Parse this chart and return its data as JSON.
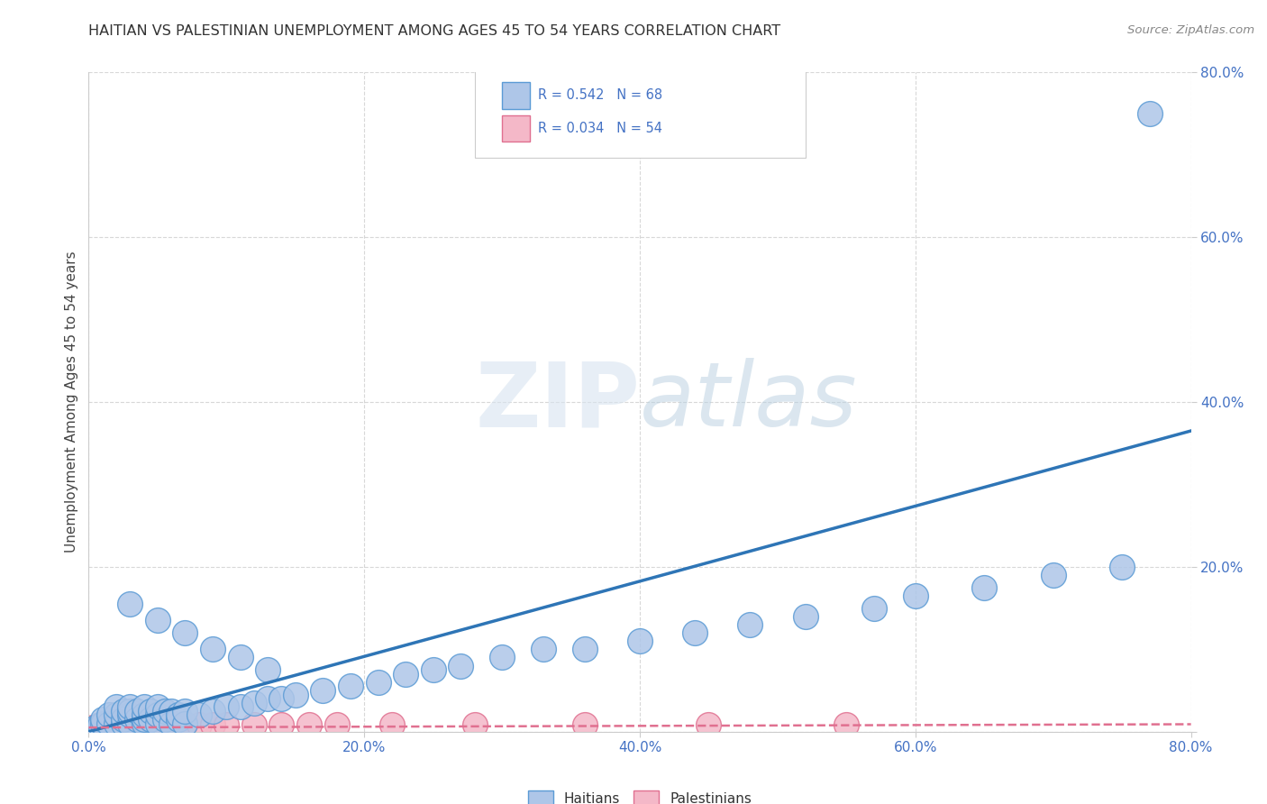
{
  "title": "HAITIAN VS PALESTINIAN UNEMPLOYMENT AMONG AGES 45 TO 54 YEARS CORRELATION CHART",
  "source": "Source: ZipAtlas.com",
  "ylabel": "Unemployment Among Ages 45 to 54 years",
  "xlim": [
    0.0,
    0.8
  ],
  "ylim": [
    0.0,
    0.8
  ],
  "xticks": [
    0.0,
    0.2,
    0.4,
    0.6,
    0.8
  ],
  "yticks": [
    0.0,
    0.2,
    0.4,
    0.6,
    0.8
  ],
  "xticklabels": [
    "0.0%",
    "20.0%",
    "40.0%",
    "60.0%",
    "80.0%"
  ],
  "yticklabels": [
    "",
    "20.0%",
    "40.0%",
    "60.0%",
    "80.0%"
  ],
  "haitian_color": "#aec6e8",
  "haitian_edge_color": "#5b9bd5",
  "palestinian_color": "#f4b8c8",
  "palestinian_edge_color": "#e07090",
  "trend_haitian_color": "#2e75b6",
  "trend_palestinian_color": "#e07090",
  "R_haitian": 0.542,
  "N_haitian": 68,
  "R_palestinian": 0.034,
  "N_palestinian": 54,
  "background_color": "#ffffff",
  "grid_color": "#c8c8c8",
  "haitian_x": [
    0.005,
    0.008,
    0.01,
    0.01,
    0.015,
    0.015,
    0.02,
    0.02,
    0.02,
    0.025,
    0.025,
    0.025,
    0.03,
    0.03,
    0.03,
    0.03,
    0.035,
    0.035,
    0.04,
    0.04,
    0.04,
    0.04,
    0.045,
    0.045,
    0.05,
    0.05,
    0.05,
    0.055,
    0.055,
    0.06,
    0.06,
    0.065,
    0.065,
    0.07,
    0.07,
    0.08,
    0.09,
    0.1,
    0.11,
    0.12,
    0.13,
    0.14,
    0.15,
    0.17,
    0.19,
    0.21,
    0.23,
    0.25,
    0.27,
    0.3,
    0.33,
    0.36,
    0.4,
    0.44,
    0.48,
    0.52,
    0.57,
    0.6,
    0.65,
    0.7,
    0.75,
    0.77,
    0.03,
    0.05,
    0.07,
    0.09,
    0.11,
    0.13
  ],
  "haitian_y": [
    0.005,
    0.008,
    0.01,
    0.015,
    0.01,
    0.02,
    0.01,
    0.02,
    0.03,
    0.01,
    0.015,
    0.025,
    0.01,
    0.02,
    0.025,
    0.03,
    0.015,
    0.025,
    0.01,
    0.015,
    0.02,
    0.03,
    0.015,
    0.025,
    0.01,
    0.02,
    0.03,
    0.015,
    0.025,
    0.01,
    0.025,
    0.015,
    0.02,
    0.01,
    0.025,
    0.02,
    0.025,
    0.03,
    0.03,
    0.035,
    0.04,
    0.04,
    0.045,
    0.05,
    0.055,
    0.06,
    0.07,
    0.075,
    0.08,
    0.09,
    0.1,
    0.1,
    0.11,
    0.12,
    0.13,
    0.14,
    0.15,
    0.165,
    0.175,
    0.19,
    0.2,
    0.75,
    0.155,
    0.135,
    0.12,
    0.1,
    0.09,
    0.075
  ],
  "palestinian_x": [
    0.003,
    0.005,
    0.007,
    0.008,
    0.01,
    0.01,
    0.012,
    0.012,
    0.015,
    0.015,
    0.015,
    0.018,
    0.018,
    0.02,
    0.02,
    0.02,
    0.022,
    0.022,
    0.025,
    0.025,
    0.025,
    0.028,
    0.028,
    0.03,
    0.03,
    0.03,
    0.032,
    0.032,
    0.035,
    0.035,
    0.038,
    0.038,
    0.04,
    0.04,
    0.045,
    0.045,
    0.05,
    0.05,
    0.055,
    0.06,
    0.065,
    0.07,
    0.08,
    0.09,
    0.1,
    0.12,
    0.14,
    0.16,
    0.18,
    0.22,
    0.28,
    0.36,
    0.45,
    0.55
  ],
  "palestinian_y": [
    0.005,
    0.005,
    0.005,
    0.008,
    0.005,
    0.008,
    0.005,
    0.008,
    0.005,
    0.008,
    0.012,
    0.005,
    0.008,
    0.005,
    0.008,
    0.012,
    0.005,
    0.008,
    0.005,
    0.008,
    0.012,
    0.005,
    0.008,
    0.005,
    0.008,
    0.012,
    0.005,
    0.008,
    0.005,
    0.008,
    0.005,
    0.008,
    0.005,
    0.008,
    0.005,
    0.008,
    0.005,
    0.008,
    0.008,
    0.008,
    0.008,
    0.008,
    0.008,
    0.008,
    0.008,
    0.008,
    0.008,
    0.008,
    0.008,
    0.008,
    0.008,
    0.008,
    0.008,
    0.008
  ],
  "trend_h_x0": 0.0,
  "trend_h_y0": 0.0,
  "trend_h_x1": 0.8,
  "trend_h_y1": 0.365,
  "trend_p_x0": 0.0,
  "trend_p_y0": 0.005,
  "trend_p_x1": 0.8,
  "trend_p_y1": 0.009
}
